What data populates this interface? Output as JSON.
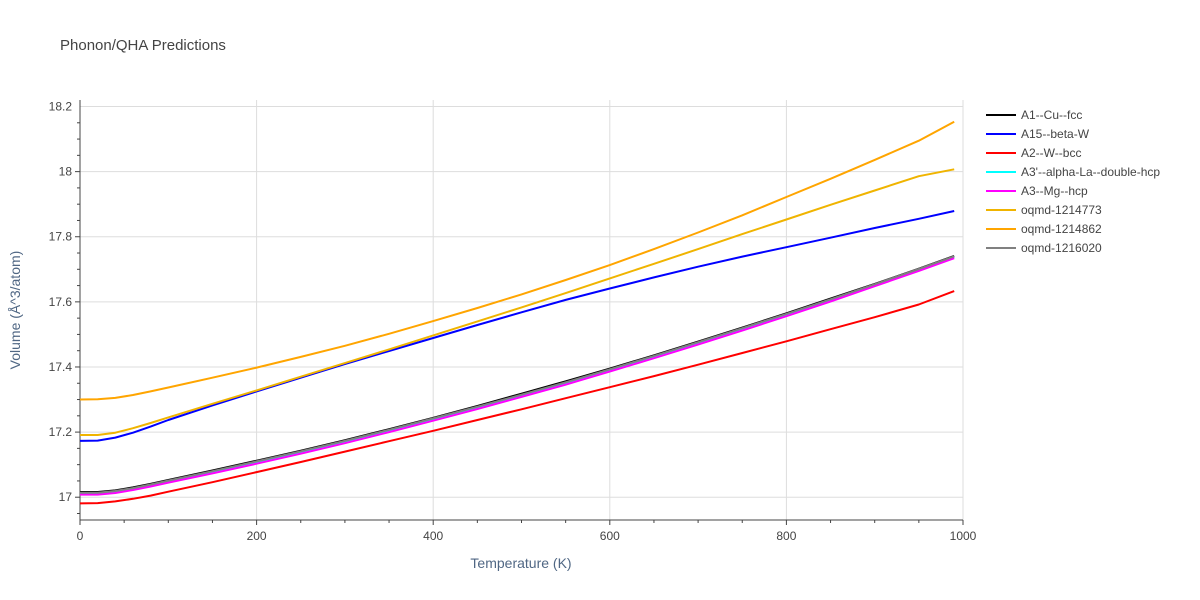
{
  "chart_data": {
    "type": "line",
    "title": "Phonon/QHA Predictions",
    "xlabel": "Temperature (K)",
    "ylabel": "Volume (Å^3/atom)",
    "xlim": [
      0,
      1000
    ],
    "ylim": [
      16.93,
      18.22
    ],
    "x_ticks": [
      0,
      200,
      400,
      600,
      800,
      1000
    ],
    "x_tick_labels": [
      "0",
      "200",
      "400",
      "600",
      "800",
      "1000"
    ],
    "y_ticks": [
      17,
      17.2,
      17.4,
      17.6,
      17.8,
      18,
      18.2
    ],
    "y_tick_labels": [
      "17",
      "17.2",
      "17.4",
      "17.6",
      "17.8",
      "18",
      "18.2"
    ],
    "grid": true,
    "legend_position": "right",
    "x": [
      0,
      20,
      40,
      60,
      80,
      100,
      150,
      200,
      250,
      300,
      350,
      400,
      450,
      500,
      550,
      600,
      650,
      700,
      750,
      800,
      850,
      900,
      950,
      990
    ],
    "series": [
      {
        "name": "A1--Cu--fcc",
        "color": "#000000",
        "values": [
          17.016,
          17.016,
          17.021,
          17.03,
          17.041,
          17.053,
          17.082,
          17.112,
          17.143,
          17.175,
          17.209,
          17.244,
          17.28,
          17.318,
          17.356,
          17.395,
          17.436,
          17.478,
          17.521,
          17.565,
          17.61,
          17.655,
          17.702,
          17.741
        ]
      },
      {
        "name": "A15--beta-W",
        "color": "#0000ff",
        "values": [
          17.173,
          17.174,
          17.183,
          17.198,
          17.217,
          17.237,
          17.282,
          17.325,
          17.367,
          17.409,
          17.449,
          17.489,
          17.529,
          17.568,
          17.606,
          17.641,
          17.675,
          17.708,
          17.739,
          17.768,
          17.797,
          17.827,
          17.855,
          17.879
        ]
      },
      {
        "name": "A2--W--bcc",
        "color": "#ff0000",
        "values": [
          16.981,
          16.982,
          16.987,
          16.995,
          17.005,
          17.017,
          17.046,
          17.077,
          17.108,
          17.14,
          17.172,
          17.204,
          17.237,
          17.27,
          17.304,
          17.338,
          17.372,
          17.407,
          17.443,
          17.479,
          17.516,
          17.553,
          17.592,
          17.633
        ]
      },
      {
        "name": "A3'--alpha-La--double-hcp",
        "color": "#00ffff",
        "values": [
          17.012,
          17.012,
          17.017,
          17.026,
          17.037,
          17.049,
          17.078,
          17.108,
          17.139,
          17.171,
          17.205,
          17.24,
          17.276,
          17.313,
          17.351,
          17.391,
          17.432,
          17.474,
          17.517,
          17.561,
          17.606,
          17.652,
          17.699,
          17.738
        ]
      },
      {
        "name": "A3--Mg--hcp",
        "color": "#ff00ff",
        "values": [
          17.008,
          17.008,
          17.013,
          17.022,
          17.033,
          17.045,
          17.073,
          17.103,
          17.134,
          17.166,
          17.2,
          17.235,
          17.271,
          17.308,
          17.346,
          17.386,
          17.427,
          17.469,
          17.512,
          17.556,
          17.601,
          17.648,
          17.695,
          17.734
        ]
      },
      {
        "name": "oqmd-1214773",
        "color": "#f0b400",
        "values": [
          17.191,
          17.191,
          17.198,
          17.212,
          17.228,
          17.245,
          17.287,
          17.328,
          17.37,
          17.412,
          17.454,
          17.497,
          17.54,
          17.583,
          17.627,
          17.672,
          17.717,
          17.762,
          17.808,
          17.853,
          17.898,
          17.942,
          17.986,
          18.007
        ]
      },
      {
        "name": "oqmd-1214862",
        "color": "#ffa500",
        "values": [
          17.3,
          17.301,
          17.305,
          17.314,
          17.325,
          17.337,
          17.367,
          17.398,
          17.431,
          17.465,
          17.502,
          17.541,
          17.581,
          17.623,
          17.667,
          17.713,
          17.762,
          17.813,
          17.866,
          17.922,
          17.978,
          18.036,
          18.095,
          18.153
        ]
      },
      {
        "name": "oqmd-1216020",
        "color": "#808080",
        "values": [
          17.014,
          17.014,
          17.019,
          17.028,
          17.039,
          17.051,
          17.08,
          17.11,
          17.141,
          17.173,
          17.207,
          17.242,
          17.278,
          17.315,
          17.353,
          17.393,
          17.434,
          17.476,
          17.519,
          17.563,
          17.608,
          17.654,
          17.701,
          17.74
        ]
      }
    ]
  }
}
